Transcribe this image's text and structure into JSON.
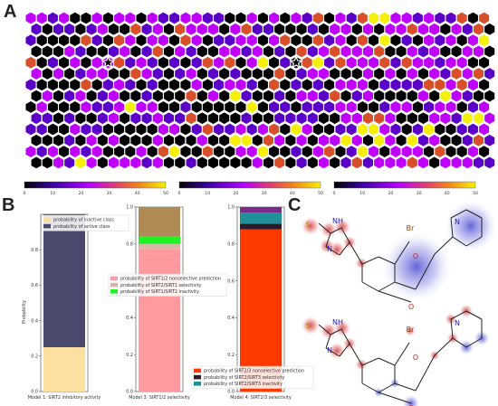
{
  "panel_labels": {
    "a": "A",
    "b": "B",
    "c": "C"
  },
  "som": {
    "cols": 14,
    "rows": 14,
    "maps": [
      {
        "seed": 11,
        "hot": 0.06,
        "mid": 0.3,
        "star": [
          7,
          4
        ]
      },
      {
        "seed": 23,
        "hot": 0.1,
        "mid": 0.38,
        "star": [
          10,
          4
        ]
      },
      {
        "seed": 37,
        "hot": 0.16,
        "mid": 0.52,
        "star": null
      }
    ],
    "colorbar_ticks": [
      "0",
      "10",
      "20",
      "30",
      "40",
      "50"
    ],
    "colors": {
      "empty": "#000000",
      "low": "#5a00c8",
      "mid": "#c000ff",
      "warm": "#d84f2a",
      "hot": "#f6ef0a"
    }
  },
  "chart_data": [
    {
      "type": "bar",
      "stacked": true,
      "categories": [
        "Model 1: SIRT2 inhibitory activity"
      ],
      "ylabel": "Probability",
      "ylim": [
        0,
        1.0
      ],
      "yticks": [
        "0.0",
        "0.2",
        "0.4",
        "0.6",
        "0.8"
      ],
      "legend": "top-left",
      "series": [
        {
          "name": "probability of inactive class",
          "values": [
            0.25
          ],
          "color": "#fde0a0"
        },
        {
          "name": "probability of active class",
          "values": [
            0.75
          ],
          "color": "#4a4a6e"
        }
      ]
    },
    {
      "type": "bar",
      "stacked": true,
      "categories": [
        "Model 3: SIRT1/2 selectivity"
      ],
      "ylim": [
        0,
        1.0
      ],
      "yticks": [
        "0.0",
        "0.2",
        "0.4",
        "0.6",
        "0.8",
        "1.0"
      ],
      "legend": "center",
      "series": [
        {
          "name": "probability of SIRT1/2 nonselective prediction",
          "values": [
            0.77
          ],
          "color": "#ff9aa0"
        },
        {
          "name": "probability of SIRT2/SIRT1 selectivity",
          "values": [
            0.03
          ],
          "color": "#d6b8a8"
        },
        {
          "name": "probability of SIRT1/SIRT2 inactivity",
          "values": [
            0.04
          ],
          "color": "#22f022"
        },
        {
          "name": "",
          "values": [
            0.16
          ],
          "color": "#b08a55"
        }
      ]
    },
    {
      "type": "bar",
      "stacked": true,
      "categories": [
        "Model 4: SIRT2/3 selectivity"
      ],
      "ylim": [
        0,
        1.0
      ],
      "yticks": [
        "0.0",
        "0.2",
        "0.4",
        "0.6",
        "0.8",
        "1.0"
      ],
      "legend": "bottom",
      "series": [
        {
          "name": "probability of SIRT2/3 nonselective prediction",
          "values": [
            0.88
          ],
          "color": "#ff3a00"
        },
        {
          "name": "probability of SIRT2/SIRT3 selectivity",
          "values": [
            0.03
          ],
          "color": "#2a1a2a"
        },
        {
          "name": "probability of SIRT2/SIRT3 inactivity",
          "values": [
            0.06
          ],
          "color": "#1f8f98"
        },
        {
          "name": "",
          "values": [
            0.03
          ],
          "color": "#7a2a8a"
        }
      ]
    }
  ],
  "molecule": {
    "atoms": {
      "s": "S",
      "nh": "NH",
      "n": "N",
      "o": "O",
      "br": "Br"
    }
  }
}
